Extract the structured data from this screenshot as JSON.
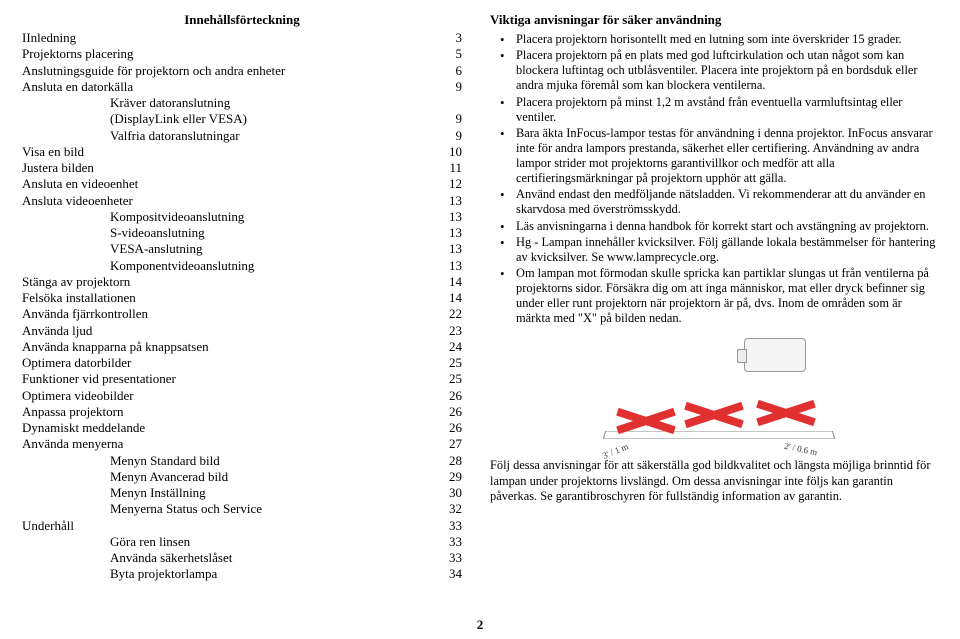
{
  "pageNumber": "2",
  "toc": {
    "title": "Innehållsförteckning",
    "rows": [
      {
        "label": "IInledning",
        "num": "3",
        "indent": 0
      },
      {
        "label": "Projektorns placering",
        "num": "5",
        "indent": 0
      },
      {
        "label": "Anslutningsguide för projektorn och andra enheter",
        "num": "6",
        "indent": 0
      },
      {
        "label": "Ansluta en datorkälla",
        "num": "9",
        "indent": 0
      },
      {
        "label": "Kräver datoranslutning",
        "num": "",
        "indent": 1
      },
      {
        "label": "(DisplayLink eller VESA)",
        "num": "9",
        "indent": 1
      },
      {
        "label": "Valfria datoranslutningar",
        "num": "9",
        "indent": 1
      },
      {
        "label": "Visa en bild",
        "num": "10",
        "indent": 0
      },
      {
        "label": "Justera bilden",
        "num": "11",
        "indent": 0
      },
      {
        "label": "Ansluta en videoenhet",
        "num": "12",
        "indent": 0
      },
      {
        "label": "Ansluta videoenheter",
        "num": "13",
        "indent": 0
      },
      {
        "label": "Kompositvideoanslutning",
        "num": "13",
        "indent": 1
      },
      {
        "label": "S-videoanslutning",
        "num": "13",
        "indent": 1
      },
      {
        "label": "VESA-anslutning",
        "num": "13",
        "indent": 1
      },
      {
        "label": "Komponentvideoanslutning",
        "num": "13",
        "indent": 1
      },
      {
        "label": "Stänga av projektorn",
        "num": "14",
        "indent": 0
      },
      {
        "label": "Felsöka installationen",
        "num": "14",
        "indent": 0
      },
      {
        "label": "Använda fjärrkontrollen",
        "num": "22",
        "indent": 0
      },
      {
        "label": "Använda ljud",
        "num": "23",
        "indent": 0
      },
      {
        "label": "Använda knapparna på knappsatsen",
        "num": "24",
        "indent": 0
      },
      {
        "label": "Optimera datorbilder",
        "num": "25",
        "indent": 0
      },
      {
        "label": "Funktioner vid presentationer",
        "num": "25",
        "indent": 0
      },
      {
        "label": "Optimera videobilder",
        "num": "26",
        "indent": 0
      },
      {
        "label": "Anpassa projektorn",
        "num": "26",
        "indent": 0
      },
      {
        "label": "Dynamiskt meddelande",
        "num": "26",
        "indent": 0
      },
      {
        "label": "Använda menyerna",
        "num": "27",
        "indent": 0
      },
      {
        "label": "Menyn Standard bild",
        "num": "28",
        "indent": 1
      },
      {
        "label": "Menyn Avancerad bild",
        "num": "29",
        "indent": 1
      },
      {
        "label": "Menyn Inställning",
        "num": "30",
        "indent": 1
      },
      {
        "label": "Menyerna Status och Service",
        "num": "32",
        "indent": 1
      },
      {
        "label": "Underhåll",
        "num": "33",
        "indent": 0
      },
      {
        "label": "Göra ren linsen",
        "num": "33",
        "indent": 1
      },
      {
        "label": "Använda säkerhetslåset",
        "num": "33",
        "indent": 1
      },
      {
        "label": "Byta projektorlampa",
        "num": "34",
        "indent": 1
      }
    ]
  },
  "right": {
    "title": "Viktiga anvisningar för säker användning",
    "bullets": [
      "Placera projektorn horisontellt med en lutning som inte överskrider 15 grader.",
      "Placera projektorn på en plats med god luftcirkulation och utan något som kan blockera luftintag och utblåsventiler. Placera inte projektorn på en bordsduk eller andra mjuka föremål som kan blockera ventilerna.",
      "Placera projektorn på minst 1,2 m avstånd från eventuella varmluftsintag eller ventiler.",
      "Bara äkta InFocus-lampor testas för användning i denna projektor. InFocus ansvarar inte för andra lampors prestanda, säkerhet eller certifiering. Användning av andra lampor strider mot projektorns garantivillkor och medför att alla certifieringsmärkningar på projektorn upphör att gälla.",
      "Använd endast den medföljande nätsladden. Vi rekommenderar att du använder en skarvdosa med överströmsskydd.",
      "Läs anvisningarna i denna handbok för korrekt start och avstängning av projektorn.",
      "Hg - Lampan innehåller kvicksilver. Följ gällande lokala bestämmelser för hantering av kvicksilver. Se www.lamprecycle.org.",
      "Om lampan mot förmodan skulle spricka kan partiklar slungas ut från ventilerna på projektorns sidor. Försäkra dig om att inga människor, mat eller dryck befinner sig under eller runt projektorn när projektorn är på, dvs. Inom de områden som är märkta med \"X\" på bilden nedan."
    ],
    "closing": "Följ dessa anvisningar för att säkerställa god bildkvalitet och längsta möjliga brinntid för lampan under projektorns livslängd. Om dessa anvisningar inte följs kan garantin påverkas. Se garantibroschyren för fullständig information av garantin.",
    "diagLeft": "3' / 1 m",
    "diagRight": "2' / 0.6 m"
  }
}
